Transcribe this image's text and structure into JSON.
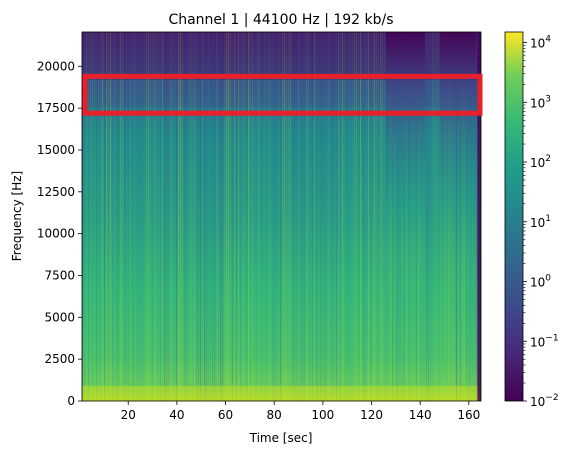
{
  "chart_data": {
    "type": "heatmap",
    "title": "Channel 1 | 44100 Hz | 192 kb/s",
    "xlabel": "Time [sec]",
    "ylabel": "Frequency [Hz]",
    "xlim": [
      1,
      165
    ],
    "ylim": [
      0,
      22050
    ],
    "xticks": [
      20,
      40,
      60,
      80,
      100,
      120,
      140,
      160
    ],
    "yticks": [
      0,
      2500,
      5000,
      7500,
      10000,
      12500,
      15000,
      17500,
      20000
    ],
    "colormap": "viridis",
    "colorbar": {
      "scale": "log",
      "range": [
        0.01,
        15000
      ],
      "ticks": [
        {
          "base": "10",
          "exp": "4",
          "value": 10000
        },
        {
          "base": "10",
          "exp": "3",
          "value": 1000
        },
        {
          "base": "10",
          "exp": "2",
          "value": 100
        },
        {
          "base": "10",
          "exp": "1",
          "value": 10
        },
        {
          "base": "10",
          "exp": "0",
          "value": 1
        },
        {
          "base": "10",
          "exp": "−1",
          "value": 0.1
        },
        {
          "base": "10",
          "exp": "−2",
          "value": 0.01
        }
      ]
    },
    "dark_segments_sec": [
      [
        126,
        142
      ],
      [
        148,
        163
      ]
    ],
    "highlight": {
      "color": "#e8202a",
      "time_sec": [
        1,
        165
      ],
      "freq_hz": [
        17200,
        19400
      ]
    }
  }
}
